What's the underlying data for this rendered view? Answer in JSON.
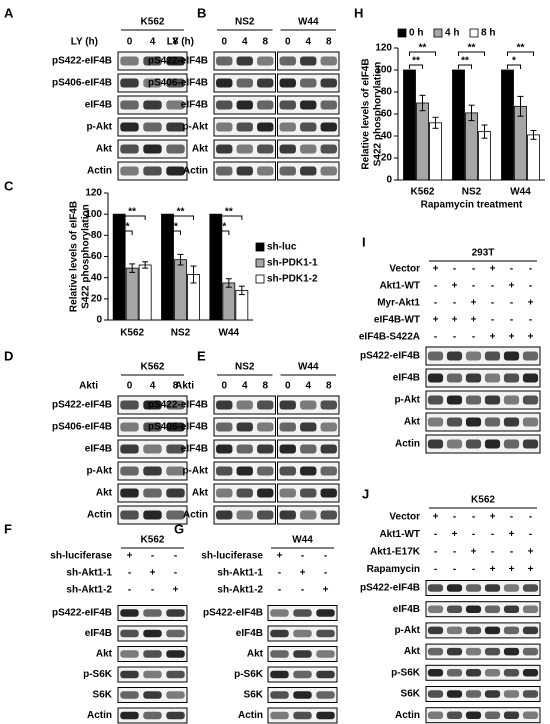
{
  "panels": [
    {
      "label": "A",
      "groups": [
        "K562"
      ],
      "treatment": "LY (h)",
      "lanes": [
        "0",
        "4",
        "8"
      ],
      "rows": [
        "pS422-eIF4B",
        "pS406-eIF4B",
        "eIF4B",
        "p-Akt",
        "Akt",
        "Actin"
      ]
    },
    {
      "label": "B",
      "groups": [
        "NS2",
        "W44"
      ],
      "treatment": "LY (h)",
      "lanes": [
        "0",
        "4",
        "8"
      ],
      "rows": [
        "pS422-eIF4B",
        "pS406-eIF4B",
        "eIF4B",
        "p-Akt",
        "Akt",
        "Actin"
      ]
    },
    {
      "label": "D",
      "groups": [
        "K562"
      ],
      "treatment": "Akti",
      "lanes": [
        "0",
        "4",
        "8"
      ],
      "rows": [
        "pS422-eIF4B",
        "pS406-eIF4B",
        "eIF4B",
        "p-Akt",
        "Akt",
        "Actin"
      ]
    },
    {
      "label": "E",
      "groups": [
        "NS2",
        "W44"
      ],
      "treatment": "Akti",
      "lanes": [
        "0",
        "4",
        "8"
      ],
      "rows": [
        "pS422-eIF4B",
        "pS406-eIF4B",
        "eIF4B",
        "p-Akt",
        "Akt",
        "Actin"
      ]
    },
    {
      "label": "F",
      "groups": [
        "K562"
      ],
      "conditions": [
        {
          "name": "sh-luciferase",
          "signs": [
            "+",
            "-",
            "-"
          ]
        },
        {
          "name": "sh-Akt1-1",
          "signs": [
            "-",
            "+",
            "-"
          ]
        },
        {
          "name": "sh-Akt1-2",
          "signs": [
            "-",
            "-",
            "+"
          ]
        }
      ],
      "rows": [
        "pS422-eIF4B",
        "eIF4B",
        "Akt",
        "p-S6K",
        "S6K",
        "Actin"
      ]
    },
    {
      "label": "G",
      "groups": [
        "W44"
      ],
      "conditions": [
        {
          "name": "sh-luciferase",
          "signs": [
            "+",
            "-",
            "-"
          ]
        },
        {
          "name": "sh-Akt1-1",
          "signs": [
            "-",
            "+",
            "-"
          ]
        },
        {
          "name": "sh-Akt1-2",
          "signs": [
            "-",
            "-",
            "+"
          ]
        }
      ],
      "rows": [
        "pS422-eIF4B",
        "eIF4B",
        "Akt",
        "p-S6K",
        "S6K",
        "Actin"
      ]
    },
    {
      "label": "I",
      "groups": [
        "293T"
      ],
      "conditions": [
        {
          "name": "Vector",
          "signs": [
            "+",
            "-",
            "-",
            "+",
            "-",
            "-"
          ]
        },
        {
          "name": "Akt1-WT",
          "signs": [
            "-",
            "+",
            "-",
            "-",
            "+",
            "-"
          ]
        },
        {
          "name": "Myr-Akt1",
          "signs": [
            "-",
            "-",
            "+",
            "-",
            "-",
            "+"
          ]
        },
        {
          "name": "eIF4B-WT",
          "signs": [
            "+",
            "+",
            "+",
            "-",
            "-",
            "-"
          ]
        },
        {
          "name": "eIF4B-S422A",
          "signs": [
            "-",
            "-",
            "-",
            "+",
            "+",
            "+"
          ]
        }
      ],
      "rows": [
        "pS422-eIF4B",
        "eIF4B",
        "p-Akt",
        "Akt",
        "Actin"
      ]
    },
    {
      "label": "J",
      "groups": [
        "K562"
      ],
      "conditions": [
        {
          "name": "Vector",
          "signs": [
            "+",
            "-",
            "-",
            "+",
            "-",
            "-"
          ]
        },
        {
          "name": "Akt1-WT",
          "signs": [
            "-",
            "+",
            "-",
            "-",
            "+",
            "-"
          ]
        },
        {
          "name": "Akt1-E17K",
          "signs": [
            "-",
            "-",
            "+",
            "-",
            "-",
            "+"
          ]
        },
        {
          "name": "Rapamycin",
          "signs": [
            "-",
            "-",
            "-",
            "+",
            "+",
            "+"
          ]
        }
      ],
      "rows": [
        "pS422-eIF4B",
        "eIF4B",
        "p-Akt",
        "Akt",
        "p-S6K",
        "S6K",
        "Actin"
      ]
    }
  ],
  "chart_data": [
    {
      "type": "bar",
      "label": "C",
      "y_label": [
        "Relative levels of eIF4B",
        "S422 phosphorylation"
      ],
      "categories": [
        "K562",
        "NS2",
        "W44"
      ],
      "series": [
        {
          "name": "sh-luc",
          "color": "#000000",
          "values": [
            100,
            100,
            100
          ]
        },
        {
          "name": "sh-PDK1-1",
          "color": "#a6a6a6",
          "values": [
            49,
            57,
            35
          ],
          "errors": [
            4,
            5,
            4
          ]
        },
        {
          "name": "sh-PDK1-2",
          "color": "#ffffff",
          "values": [
            52,
            43,
            28
          ],
          "errors": [
            3,
            8,
            4
          ]
        }
      ],
      "ylim": [
        0,
        120
      ],
      "yticks": [
        0,
        20,
        40,
        60,
        80,
        100,
        120
      ],
      "legend": "right",
      "annotations": [
        "**",
        "**",
        "**",
        "**",
        "**",
        "**"
      ]
    },
    {
      "type": "bar",
      "label": "H",
      "y_label": [
        "Relative levels of eIF4B",
        "S422 phosphorylation"
      ],
      "x_label": "Rapamycin treatment",
      "categories": [
        "K562",
        "NS2",
        "W44"
      ],
      "series": [
        {
          "name": "0 h",
          "color": "#000000",
          "values": [
            100,
            100,
            100
          ]
        },
        {
          "name": "4 h",
          "color": "#a6a6a6",
          "values": [
            70,
            61,
            67
          ],
          "errors": [
            7,
            7,
            9
          ]
        },
        {
          "name": "8 h",
          "color": "#ffffff",
          "values": [
            52,
            44,
            41
          ],
          "errors": [
            5,
            6,
            4
          ]
        }
      ],
      "ylim": [
        0,
        120
      ],
      "yticks": [
        0,
        20,
        40,
        60,
        80,
        100,
        120
      ],
      "legend": "top",
      "annotations": [
        "**",
        "**",
        "**",
        "**",
        "**",
        "*"
      ]
    }
  ]
}
